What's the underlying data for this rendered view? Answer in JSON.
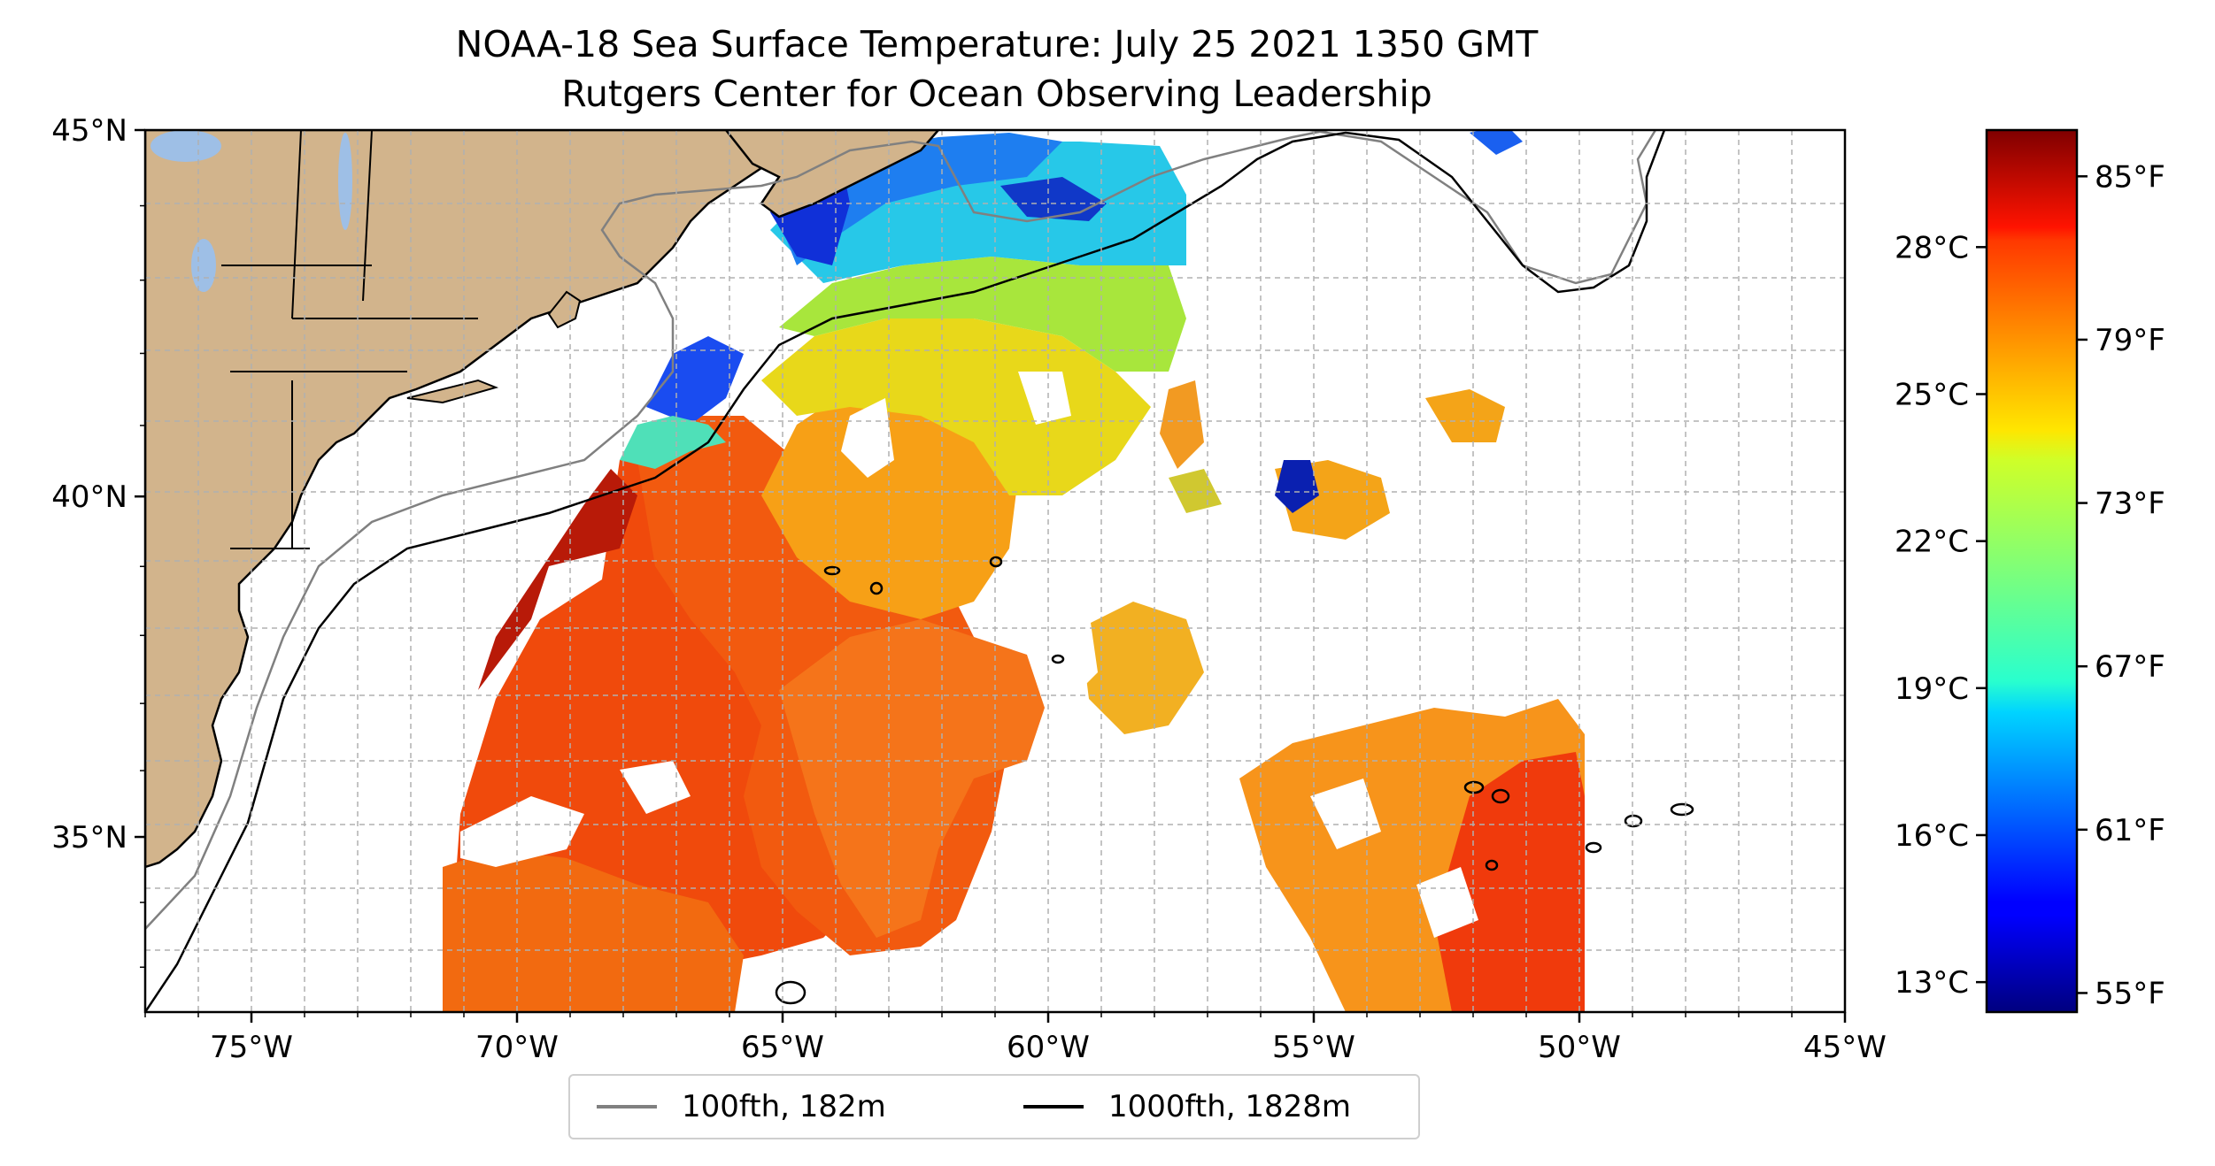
{
  "title_line1": "NOAA-18 Sea Surface Temperature: July 25 2021 1350 GMT",
  "title_line2": "Rutgers Center for Ocean Observing Leadership",
  "map": {
    "projection": "Mercator",
    "lon_range": [
      -77,
      -45
    ],
    "lat_range": [
      32.3,
      45
    ],
    "gridlines": "dashed, every 1 degree",
    "land_color": "#d2b48c",
    "lake_color": "#9ebfe6",
    "lon_ticks": [
      {
        "lon": -75,
        "label": "75°W"
      },
      {
        "lon": -70,
        "label": "70°W"
      },
      {
        "lon": -65,
        "label": "65°W"
      },
      {
        "lon": -60,
        "label": "60°W"
      },
      {
        "lon": -55,
        "label": "55°W"
      },
      {
        "lon": -50,
        "label": "50°W"
      },
      {
        "lon": -45,
        "label": "45°W"
      }
    ],
    "lat_ticks": [
      {
        "lat": 45,
        "label": "45°N"
      },
      {
        "lat": 40,
        "label": "40°N"
      },
      {
        "lat": 35,
        "label": "35°N"
      }
    ]
  },
  "colorbar": {
    "colormap": "jet",
    "range_f": [
      54.3,
      86.7
    ],
    "celsius_ticks": [
      {
        "value_c": 28,
        "label": "28°C"
      },
      {
        "value_c": 25,
        "label": "25°C"
      },
      {
        "value_c": 22,
        "label": "22°C"
      },
      {
        "value_c": 19,
        "label": "19°C"
      },
      {
        "value_c": 16,
        "label": "16°C"
      },
      {
        "value_c": 13,
        "label": "13°C"
      }
    ],
    "fahrenheit_ticks": [
      {
        "value_f": 85,
        "label": "85°F"
      },
      {
        "value_f": 79,
        "label": "79°F"
      },
      {
        "value_f": 73,
        "label": "73°F"
      },
      {
        "value_f": 67,
        "label": "67°F"
      },
      {
        "value_f": 61,
        "label": "61°F"
      },
      {
        "value_f": 55,
        "label": "55°F"
      }
    ]
  },
  "legend": {
    "items": [
      {
        "label": "100fth, 182m",
        "color": "#808080"
      },
      {
        "label": "1000fth, 1828m",
        "color": "#000000"
      }
    ]
  }
}
